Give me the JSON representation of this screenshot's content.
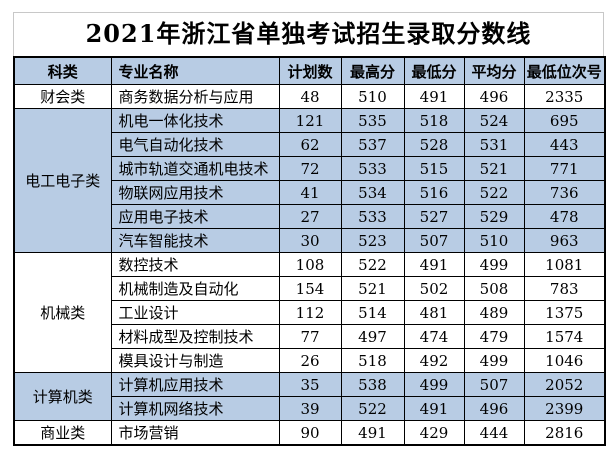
{
  "chart_data": {
    "type": "table",
    "title": "2021年浙江省单独考试招生录取分数线",
    "columns": [
      "科类",
      "专业名称",
      "计划数",
      "最高分",
      "最低分",
      "平均分",
      "最低位次号"
    ],
    "groups": [
      {
        "category": "财会类",
        "shaded": false,
        "rows": [
          [
            "商务数据分析与应用",
            48,
            510,
            491,
            496,
            2335
          ]
        ]
      },
      {
        "category": "电工电子类",
        "shaded": true,
        "rows": [
          [
            "机电一体化技术",
            121,
            535,
            518,
            524,
            695
          ],
          [
            "电气自动化技术",
            62,
            537,
            528,
            531,
            443
          ],
          [
            "城市轨道交通机电技术",
            72,
            533,
            515,
            521,
            771
          ],
          [
            "物联网应用技术",
            41,
            534,
            516,
            522,
            736
          ],
          [
            "应用电子技术",
            27,
            533,
            527,
            529,
            478
          ],
          [
            "汽车智能技术",
            30,
            523,
            507,
            510,
            963
          ]
        ]
      },
      {
        "category": "机械类",
        "shaded": false,
        "rows": [
          [
            "数控技术",
            108,
            522,
            491,
            499,
            1081
          ],
          [
            "机械制造及自动化",
            154,
            521,
            502,
            508,
            783
          ],
          [
            "工业设计",
            112,
            514,
            481,
            489,
            1375
          ],
          [
            "材料成型及控制技术",
            77,
            497,
            474,
            479,
            1574
          ],
          [
            "模具设计与制造",
            26,
            518,
            492,
            499,
            1046
          ]
        ]
      },
      {
        "category": "计算机类",
        "shaded": true,
        "rows": [
          [
            "计算机应用技术",
            35,
            538,
            499,
            507,
            2052
          ],
          [
            "计算机网络技术",
            39,
            522,
            491,
            496,
            2399
          ]
        ]
      },
      {
        "category": "商业类",
        "shaded": false,
        "rows": [
          [
            "市场营销",
            90,
            491,
            429,
            444,
            2816
          ]
        ]
      }
    ],
    "colors": {
      "shaded_bg": "#b8cce4",
      "header_bg": "#b8cce4",
      "grid_border": "#000000",
      "title_border": "#c8c8c8",
      "text": "#000000",
      "page_bg": "#ffffff"
    }
  }
}
